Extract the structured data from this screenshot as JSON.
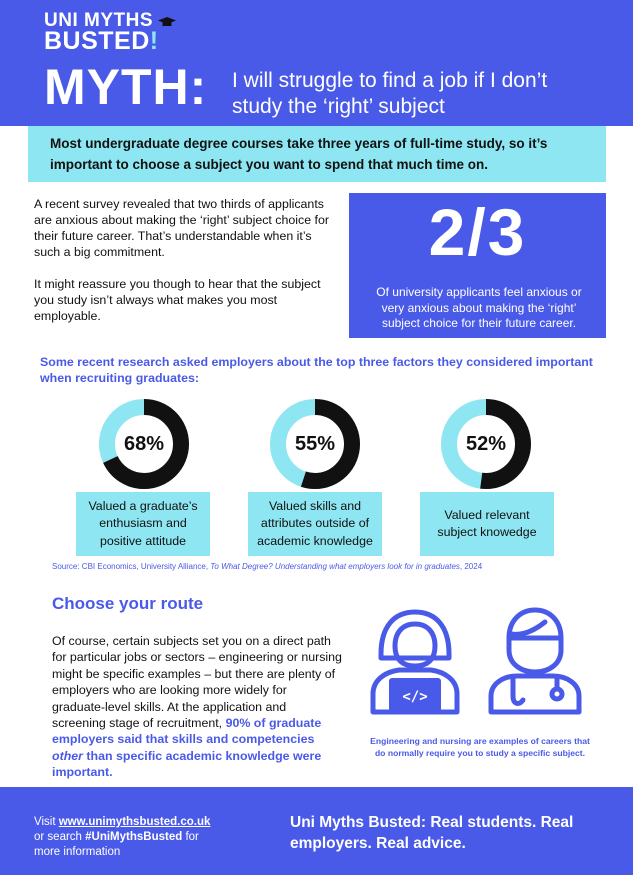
{
  "brand": {
    "line1": "UNI MYTHS",
    "line2": "BUSTED",
    "bang": "!"
  },
  "header": {
    "myth_label": "MYTH:",
    "headline_1": "I will struggle to find a job if I don’t",
    "headline_2": "study the ‘right’ subject"
  },
  "intro": {
    "line1": "Most undergraduate degree courses take three years of full-time study, so it’s",
    "line2": "important to choose a subject you want to spend that much time on."
  },
  "survey": {
    "p1": "A recent survey revealed that two thirds of applicants are anxious about making the ‘right’ subject choice for their future career. That’s understandable when it’s such a big commitment.",
    "p2": "It might reassure you though to hear that the subject you study isn’t always what makes you most employable."
  },
  "stat": {
    "value": "2/3",
    "text": "Of university applicants feel  anxious or very anxious about making the ‘right’ subject choice for their future career."
  },
  "research": {
    "intro": "Some recent research asked employers about the top three factors they considered important when recruiting graduates:",
    "factors": [
      {
        "percent": 68,
        "label": "68%",
        "text_1": "Valued a graduate’s",
        "text_2": "enthusiasm and",
        "text_3": "positive attitude"
      },
      {
        "percent": 55,
        "label": "55%",
        "text_1": "Valued skills and",
        "text_2": "attributes outside  of",
        "text_3": "academic knowledge"
      },
      {
        "percent": 52,
        "label": "52%",
        "text_1": "Valued relevant",
        "text_2": "subject knowedge",
        "text_3": ""
      }
    ],
    "colors": {
      "filled": "#111111",
      "remaining": "#8de6f1"
    },
    "source_prefix": "Source: CBI Economics, University Alliance, ",
    "source_title": "To What Degree? Understanding what employers look for in graduates",
    "source_suffix": ", 2024"
  },
  "route": {
    "title": "Choose your route",
    "body": "Of course, certain subjects set you on a direct path for particular jobs or sectors – engineering or nursing might be specific examples – but there are plenty of employers who are looking more widely for graduate-level skills. At the application and screening stage of recruitment, ",
    "highlight_1": "90% of graduate employers said that skills and competencies ",
    "highlight_em": "other",
    "highlight_2": " than specific academic knowledge were important.",
    "caption_1": "Engineering and nursing are examples of careers that",
    "caption_2": "do normally require you to study a specific subject.",
    "icons": [
      "engineer-laptop-icon",
      "nurse-stethoscope-icon"
    ]
  },
  "footer": {
    "visit": "Visit ",
    "url": "www.unimythsbusted.co.uk",
    "search_1": "or search ",
    "hashtag": "#UniMythsBusted",
    "search_2": " for",
    "more": "more information",
    "tagline_1": "Uni Myths Busted: Real students. Real",
    "tagline_2": "employers. Real advice."
  },
  "theme": {
    "primary": "#4a5ae8",
    "accent": "#8de6f1"
  }
}
